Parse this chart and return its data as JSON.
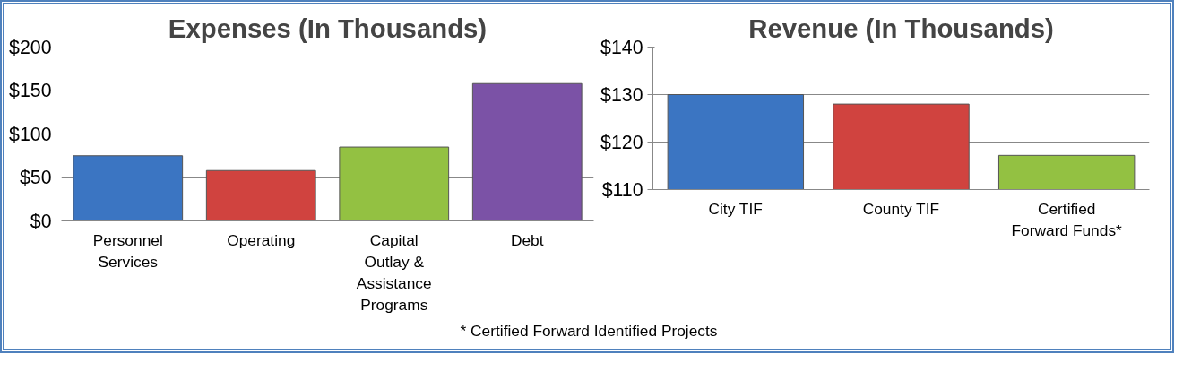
{
  "chart_data": [
    {
      "type": "bar",
      "title": "Expenses (In Thousands)",
      "categories": [
        "Personnel Services",
        "Operating",
        "Capital Outlay & Assistance Programs",
        "Debt"
      ],
      "values": [
        75,
        58,
        85,
        158
      ],
      "colors": [
        "#3b75c2",
        "#d0433f",
        "#93c142",
        "#7b52a6"
      ],
      "ylim": [
        0,
        200
      ],
      "yticks": [
        {
          "value": 0,
          "label": "$0"
        },
        {
          "value": 50,
          "label": "$50"
        },
        {
          "value": 100,
          "label": "$100"
        },
        {
          "value": 150,
          "label": "$150"
        },
        {
          "value": 200,
          "label": "$200"
        }
      ],
      "grid": "y"
    },
    {
      "type": "bar",
      "title": "Revenue (In Thousands)",
      "categories": [
        "City TIF",
        "County TIF",
        "Certified Forward Funds*"
      ],
      "values": [
        130,
        128,
        117.2
      ],
      "colors": [
        "#3b75c2",
        "#d0433f",
        "#93c142"
      ],
      "ylim": [
        110,
        140
      ],
      "yticks": [
        {
          "value": 110,
          "label": "$110"
        },
        {
          "value": 120,
          "label": "$120"
        },
        {
          "value": 130,
          "label": "$130"
        },
        {
          "value": 140,
          "label": "$140"
        }
      ],
      "grid": "y",
      "annotations": [
        "* Certified Forward Identified Projects"
      ]
    }
  ]
}
